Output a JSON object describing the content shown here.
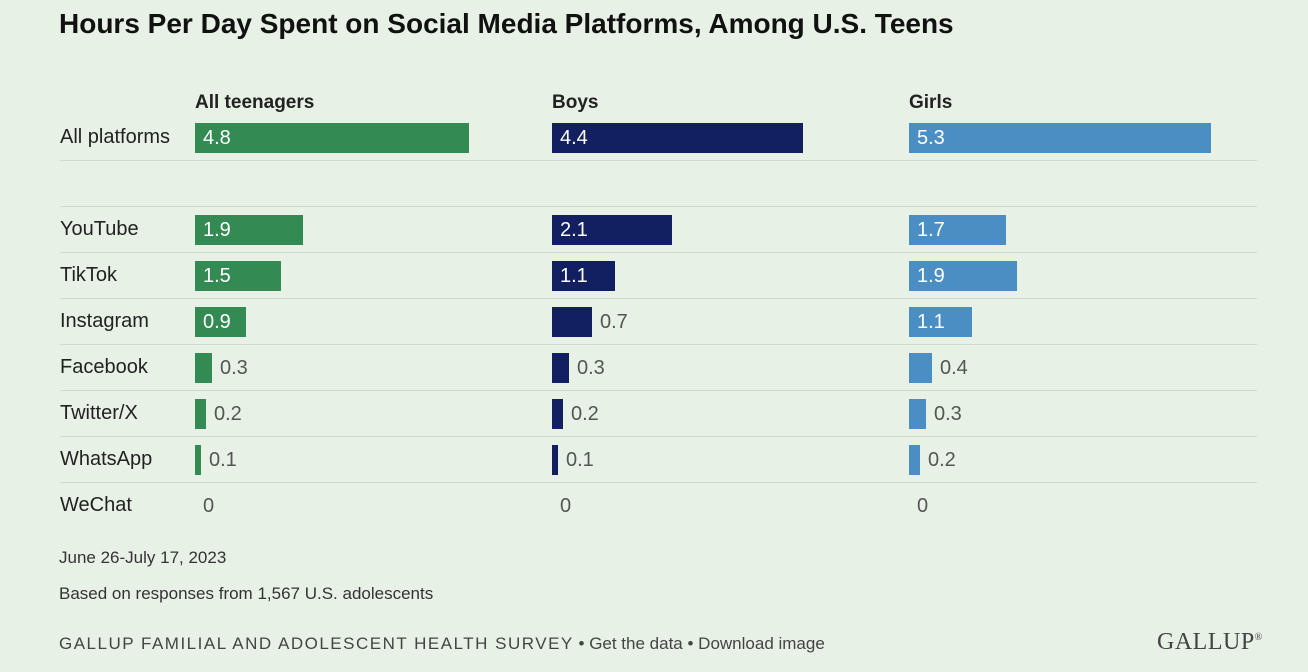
{
  "chart_data": {
    "type": "bar",
    "title": "Hours Per Day Spent on Social Media Platforms, Among U.S. Teens",
    "categories": [
      "All platforms",
      "YouTube",
      "TikTok",
      "Instagram",
      "Facebook",
      "Twitter/X",
      "WhatsApp",
      "WeChat"
    ],
    "series": [
      {
        "name": "All teenagers",
        "color": "#338a52",
        "values": [
          4.8,
          1.9,
          1.5,
          0.9,
          0.3,
          0.2,
          0.1,
          0
        ]
      },
      {
        "name": "Boys",
        "color": "#121f60",
        "values": [
          4.4,
          2.1,
          1.1,
          0.7,
          0.3,
          0.2,
          0.1,
          0
        ]
      },
      {
        "name": "Girls",
        "color": "#4b8ec4",
        "values": [
          5.3,
          1.7,
          1.9,
          1.1,
          0.4,
          0.3,
          0.2,
          0
        ]
      }
    ],
    "xlim": [
      0,
      5.5
    ]
  },
  "notes": {
    "date": "June 26-July 17, 2023",
    "base": "Based on responses from 1,567 U.S. adolescents"
  },
  "footer": {
    "source": "GALLUP FAMILIAL AND ADOLESCENT HEALTH SURVEY",
    "sep1": " • ",
    "get_data": "Get the data",
    "sep2": " • ",
    "download": "Download image"
  },
  "logo": "GALLUP",
  "logo_mark": "®"
}
